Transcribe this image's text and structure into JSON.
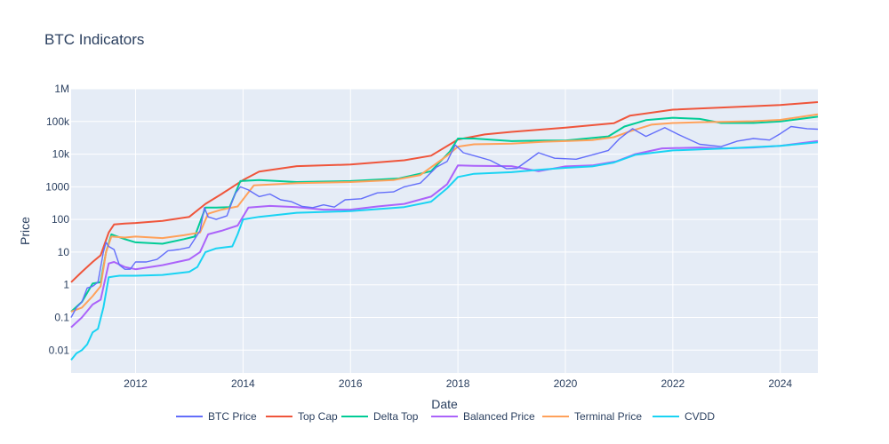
{
  "chart_data": {
    "type": "line",
    "title": "BTC Indicators",
    "xlabel": "Date",
    "ylabel": "Price",
    "y_scale": "log",
    "ylim": [
      0.002,
      1000000
    ],
    "xlim": [
      2010.8,
      2024.7
    ],
    "x_ticks": [
      2012,
      2014,
      2016,
      2018,
      2020,
      2022,
      2024
    ],
    "x_tick_labels": [
      "2012",
      "2014",
      "2016",
      "2018",
      "2020",
      "2022",
      "2024"
    ],
    "y_ticks": [
      0.01,
      0.1,
      1,
      10,
      100,
      1000,
      10000,
      100000,
      1000000
    ],
    "y_tick_labels": [
      "0.01",
      "0.1",
      "1",
      "10",
      "100",
      "1000",
      "10k",
      "100k",
      "1M"
    ],
    "grid": true,
    "legend_position": "bottom-center",
    "series": [
      {
        "name": "BTC Price",
        "color": "#636efa",
        "x": [
          2010.8,
          2010.9,
          2011.0,
          2011.1,
          2011.2,
          2011.3,
          2011.4,
          2011.45,
          2011.5,
          2011.6,
          2011.7,
          2011.8,
          2011.9,
          2012.0,
          2012.2,
          2012.4,
          2012.6,
          2012.8,
          2013.0,
          2013.2,
          2013.28,
          2013.35,
          2013.5,
          2013.7,
          2013.85,
          2013.95,
          2014.1,
          2014.3,
          2014.5,
          2014.7,
          2014.9,
          2015.1,
          2015.3,
          2015.5,
          2015.7,
          2015.9,
          2016.2,
          2016.5,
          2016.8,
          2017.0,
          2017.3,
          2017.6,
          2017.8,
          2017.95,
          2018.1,
          2018.3,
          2018.6,
          2018.9,
          2019.1,
          2019.5,
          2019.8,
          2020.2,
          2020.5,
          2020.8,
          2021.0,
          2021.25,
          2021.5,
          2021.85,
          2022.1,
          2022.5,
          2022.9,
          2023.2,
          2023.5,
          2023.8,
          2024.0,
          2024.2,
          2024.5,
          2024.7
        ],
        "values": [
          0.1,
          0.2,
          0.3,
          0.8,
          0.9,
          1.2,
          10,
          20,
          15,
          12,
          4,
          3,
          3,
          5,
          5,
          6,
          11,
          12,
          14,
          45,
          230,
          120,
          100,
          130,
          600,
          1000,
          800,
          500,
          600,
          400,
          350,
          250,
          230,
          280,
          240,
          400,
          430,
          650,
          700,
          1000,
          1300,
          4000,
          6000,
          19000,
          11000,
          9000,
          6500,
          3600,
          3700,
          11000,
          7500,
          7000,
          9500,
          13000,
          29000,
          60000,
          35000,
          65000,
          40000,
          20000,
          17000,
          25000,
          30000,
          27000,
          42000,
          70000,
          60000,
          58000
        ]
      },
      {
        "name": "Top Cap",
        "color": "#ef553b",
        "x": [
          2010.8,
          2011.0,
          2011.2,
          2011.35,
          2011.5,
          2011.6,
          2011.8,
          2012.0,
          2012.5,
          2013.0,
          2013.3,
          2013.6,
          2014.0,
          2014.3,
          2015.0,
          2016.0,
          2017.0,
          2017.5,
          2018.0,
          2018.5,
          2019.0,
          2020.0,
          2020.9,
          2021.2,
          2022.0,
          2023.0,
          2024.0,
          2024.7
        ],
        "values": [
          1.2,
          2.5,
          5,
          8,
          40,
          70,
          75,
          78,
          90,
          120,
          300,
          600,
          1600,
          2900,
          4300,
          4800,
          6500,
          9000,
          28000,
          40000,
          48000,
          65000,
          88000,
          150000,
          230000,
          270000,
          320000,
          390000
        ]
      },
      {
        "name": "Delta Top",
        "color": "#00cc96",
        "x": [
          2010.8,
          2011.0,
          2011.2,
          2011.35,
          2011.45,
          2011.55,
          2011.8,
          2012.0,
          2012.5,
          2012.9,
          2013.1,
          2013.3,
          2013.5,
          2013.75,
          2013.95,
          2014.3,
          2015.0,
          2016.0,
          2016.9,
          2017.5,
          2017.85,
          2018.0,
          2018.3,
          2019.0,
          2019.6,
          2020.0,
          2020.8,
          2021.1,
          2021.5,
          2022.0,
          2022.5,
          2022.9,
          2023.5,
          2024.0,
          2024.7
        ],
        "values": [
          0.15,
          0.3,
          1.1,
          1.2,
          10,
          35,
          25,
          20,
          18,
          25,
          30,
          230,
          230,
          240,
          1500,
          1600,
          1400,
          1500,
          1800,
          3000,
          12000,
          30000,
          30000,
          25000,
          26000,
          26000,
          35000,
          70000,
          110000,
          130000,
          120000,
          90000,
          90000,
          100000,
          140000
        ]
      },
      {
        "name": "Balanced Price",
        "color": "#ab63fa",
        "x": [
          2010.8,
          2011.0,
          2011.2,
          2011.35,
          2011.5,
          2011.6,
          2011.8,
          2012.0,
          2012.5,
          2013.0,
          2013.2,
          2013.35,
          2013.6,
          2013.9,
          2014.1,
          2014.5,
          2015.0,
          2015.5,
          2016.0,
          2016.5,
          2017.0,
          2017.5,
          2017.8,
          2018.0,
          2018.3,
          2019.0,
          2019.5,
          2020.0,
          2020.5,
          2020.95,
          2021.3,
          2021.8,
          2022.5,
          2023.0,
          2023.5,
          2024.0,
          2024.7
        ],
        "values": [
          0.05,
          0.1,
          0.25,
          0.35,
          4.5,
          5,
          3.5,
          3,
          4,
          6,
          10,
          35,
          45,
          65,
          230,
          260,
          240,
          200,
          200,
          250,
          300,
          500,
          1200,
          4500,
          4400,
          4300,
          3000,
          4200,
          4500,
          6000,
          10000,
          15000,
          16000,
          15000,
          16000,
          18000,
          25000
        ]
      },
      {
        "name": "Terminal Price",
        "color": "#ffa15a",
        "x": [
          2010.8,
          2011.0,
          2011.2,
          2011.35,
          2011.45,
          2011.55,
          2011.8,
          2012.0,
          2012.5,
          2012.9,
          2013.2,
          2013.35,
          2013.6,
          2013.9,
          2014.2,
          2015.0,
          2016.0,
          2016.8,
          2017.3,
          2017.8,
          2018.0,
          2018.3,
          2019.0,
          2019.6,
          2020.0,
          2020.5,
          2020.9,
          2021.2,
          2021.6,
          2022.0,
          2022.5,
          2023.0,
          2023.5,
          2024.0,
          2024.7
        ],
        "values": [
          0.15,
          0.2,
          0.45,
          0.9,
          10,
          30,
          28,
          30,
          27,
          33,
          40,
          150,
          200,
          250,
          1100,
          1300,
          1400,
          1600,
          2300,
          9000,
          17000,
          20000,
          21000,
          24000,
          25000,
          27000,
          33000,
          50000,
          80000,
          90000,
          95000,
          98000,
          102000,
          112000,
          165000
        ]
      },
      {
        "name": "CVDD",
        "color": "#19d3f3",
        "x": [
          2010.8,
          2010.9,
          2011.0,
          2011.1,
          2011.2,
          2011.3,
          2011.4,
          2011.5,
          2011.7,
          2012.0,
          2012.5,
          2013.0,
          2013.15,
          2013.3,
          2013.5,
          2013.8,
          2013.9,
          2014.0,
          2014.3,
          2015.0,
          2016.0,
          2017.0,
          2017.5,
          2017.8,
          2018.0,
          2018.3,
          2019.0,
          2019.5,
          2020.0,
          2020.5,
          2020.9,
          2021.3,
          2022.0,
          2023.0,
          2024.0,
          2024.7
        ],
        "values": [
          0.005,
          0.008,
          0.01,
          0.015,
          0.035,
          0.045,
          0.2,
          1.7,
          1.9,
          1.9,
          2.0,
          2.5,
          3.5,
          10,
          13,
          15,
          35,
          100,
          120,
          160,
          180,
          240,
          350,
          900,
          2000,
          2500,
          2800,
          3300,
          3800,
          4200,
          5500,
          9500,
          13000,
          15000,
          18000,
          23000
        ]
      }
    ]
  }
}
